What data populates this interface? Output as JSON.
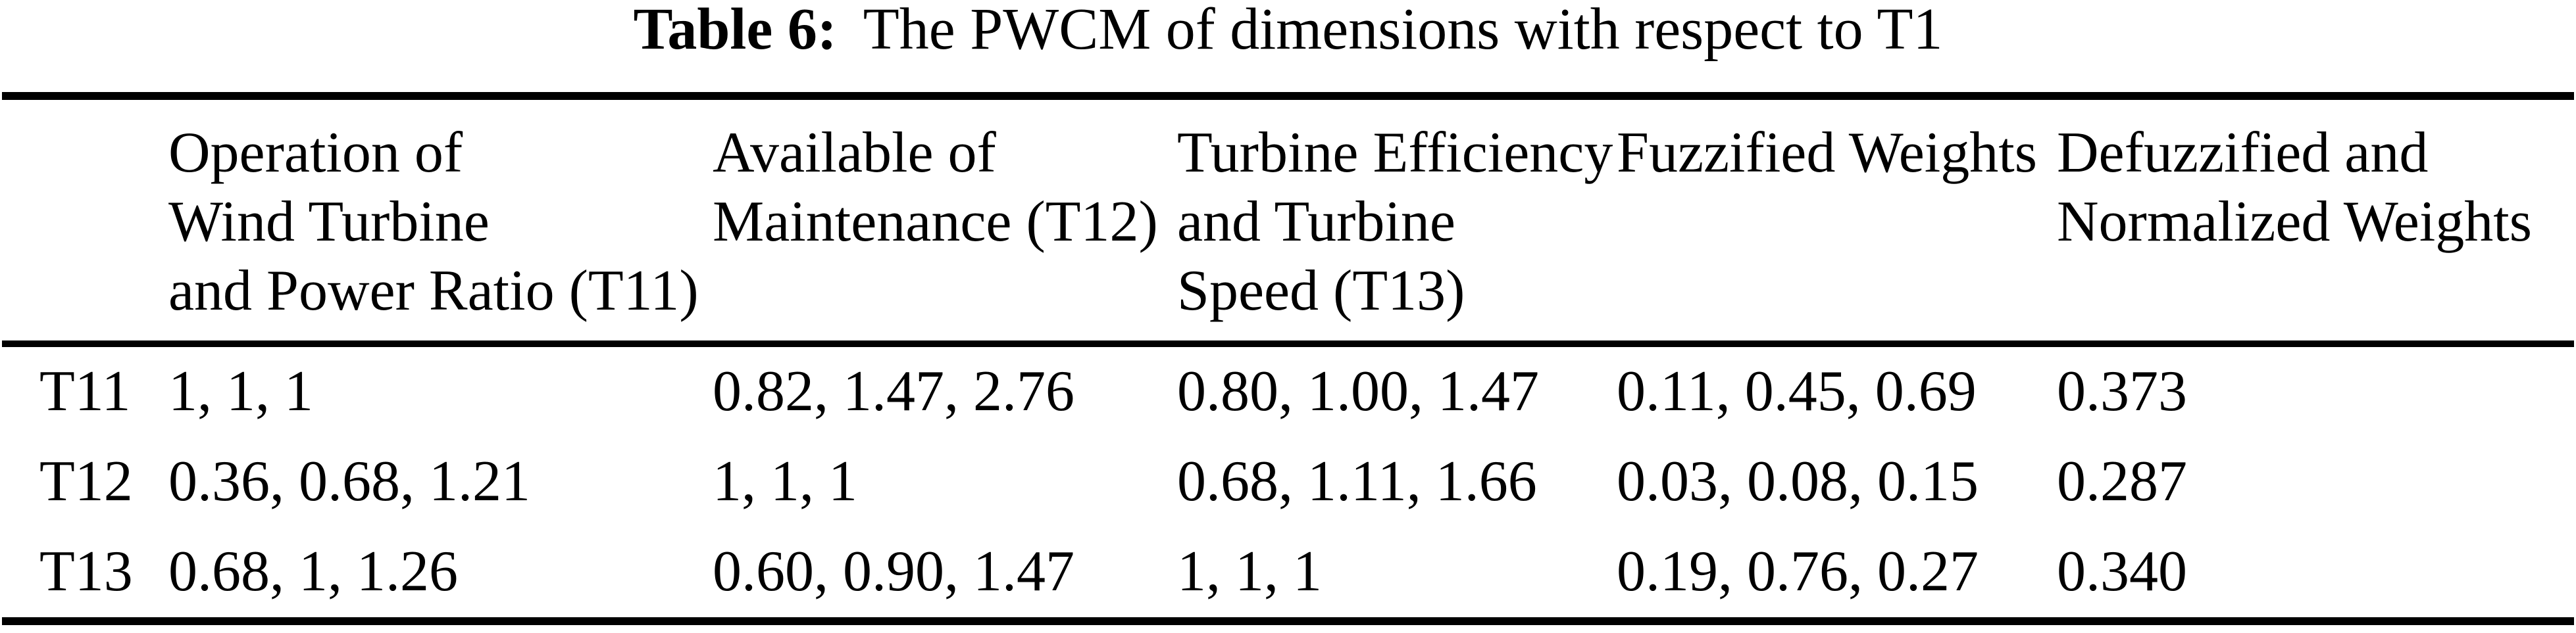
{
  "colors": {
    "background": "#ffffff",
    "text": "#000000",
    "rule": "#000000"
  },
  "caption": {
    "label": "Table 6:",
    "text": "The PWCM of dimensions with respect to T1"
  },
  "table": {
    "headers": [
      "",
      "Operation of\nWind Turbine\nand Power Ratio (T11)",
      "Available of\nMaintenance (T12)",
      "Turbine Efficiency\nand Turbine\nSpeed (T13)",
      "Fuzzified Weights",
      "Defuzzified and\nNormalized Weights"
    ],
    "rows": [
      {
        "label": "T11",
        "cells": [
          "1, 1, 1",
          "0.82, 1.47, 2.76",
          "0.80, 1.00, 1.47",
          "0.11, 0.45, 0.69",
          "0.373"
        ]
      },
      {
        "label": "T12",
        "cells": [
          "0.36, 0.68, 1.21",
          "1, 1, 1",
          "0.68, 1.11, 1.66",
          "0.03, 0.08, 0.15",
          "0.287"
        ]
      },
      {
        "label": "T13",
        "cells": [
          "0.68, 1, 1.26",
          "0.60, 0.90, 1.47",
          "1, 1, 1",
          "0.19, 0.76, 0.27",
          "0.340"
        ]
      }
    ]
  }
}
